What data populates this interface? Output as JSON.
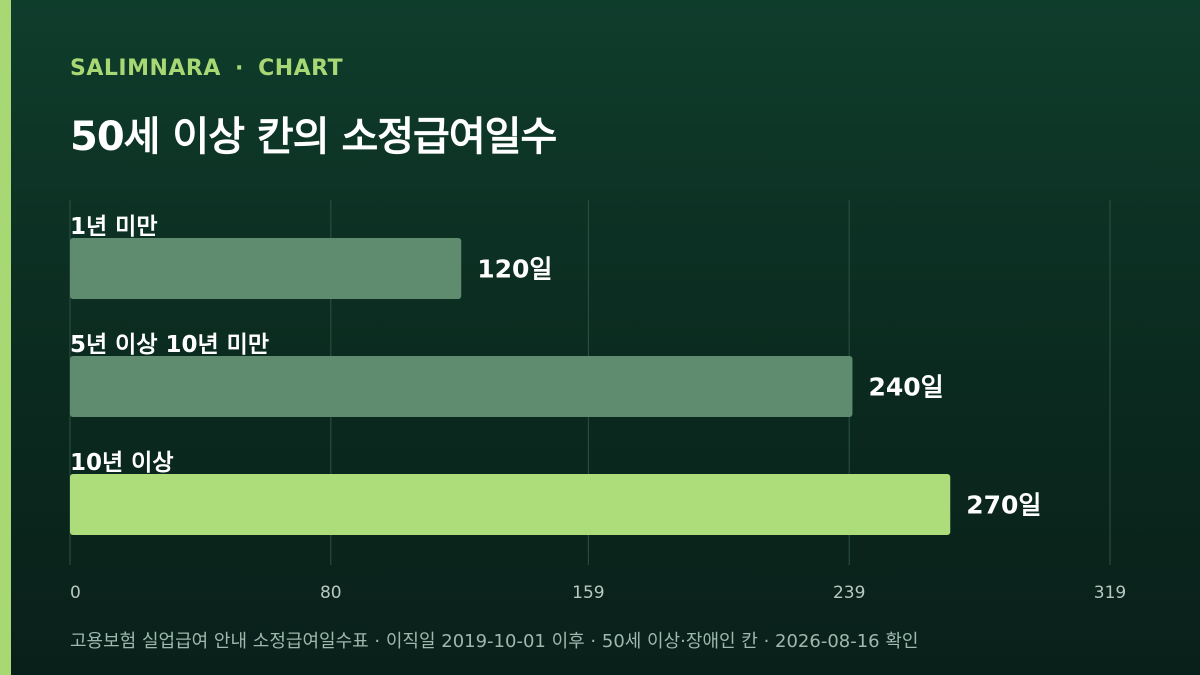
{
  "brand": {
    "name": "SALIMNARA",
    "separator": "·",
    "section": "CHART"
  },
  "title": "50세 이상 칸의 소정급여일수",
  "footer": "고용보험 실업급여 안내 소정급여일수표 · 이직일 2019-10-01 이후 · 50세 이상·장애인 칸 · 2026-08-16 확인",
  "colors": {
    "accent": "#a8d874",
    "bar": "#5f8c6f",
    "bar_highlight": "#addc7a",
    "grid": "#2c5343",
    "tick": "#b8c9c0"
  },
  "chart_data": {
    "type": "bar",
    "orientation": "horizontal",
    "categories": [
      "1년 미만",
      "5년 이상 10년 미만",
      "10년 이상"
    ],
    "values": [
      120,
      240,
      270
    ],
    "value_suffix": "일",
    "highlight_index": 2,
    "xlim": [
      0,
      319
    ],
    "xticks": [
      0,
      80,
      159,
      239,
      319
    ],
    "grid": true
  }
}
